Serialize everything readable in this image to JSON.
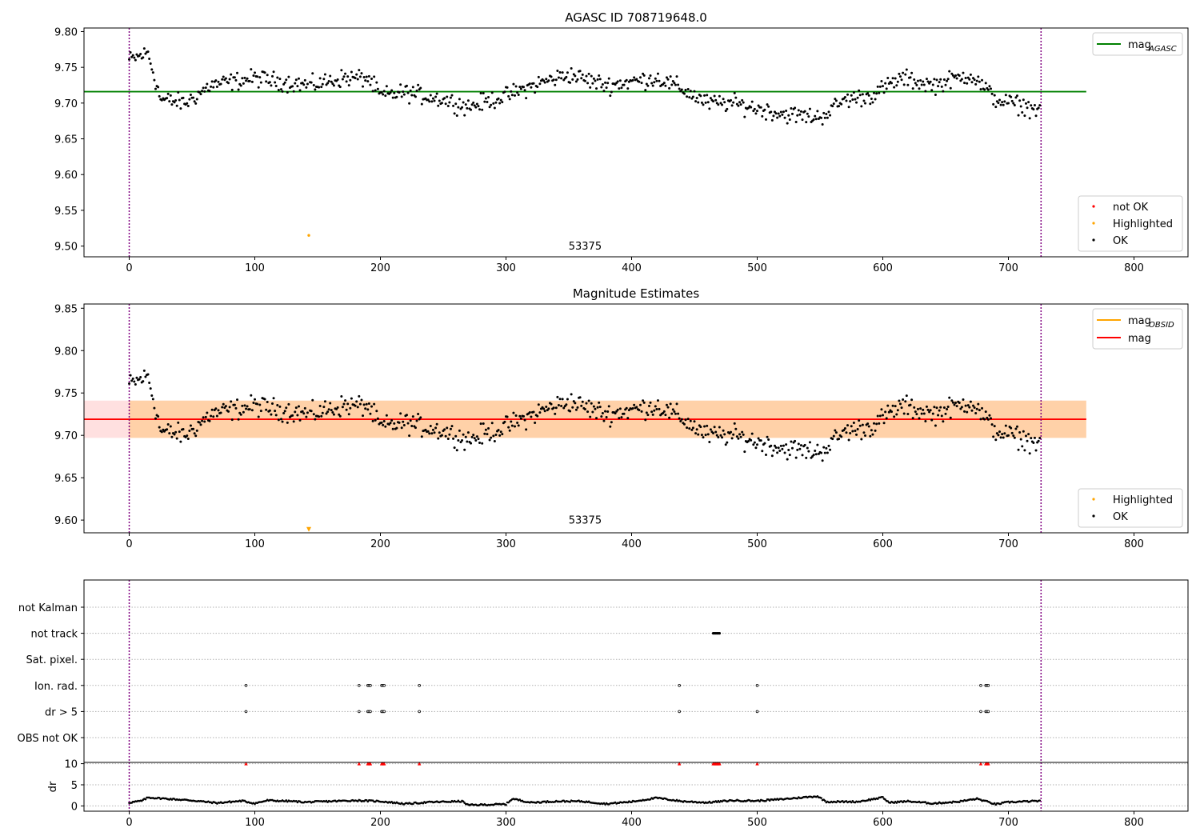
{
  "chart_data": [
    {
      "type": "scatter",
      "title": "AGASC ID 708719648.0",
      "xlim": [
        -36,
        843
      ],
      "ylim": [
        9.485,
        9.805
      ],
      "xticks": [
        0,
        100,
        200,
        300,
        400,
        500,
        600,
        700,
        800
      ],
      "yticks": [
        9.5,
        9.55,
        9.6,
        9.65,
        9.7,
        9.75,
        9.8
      ],
      "vlines": [
        0,
        726
      ],
      "annotation": {
        "text": "53375",
        "x": 363,
        "y": 9.495
      },
      "hline": {
        "name": "mag_AGASC",
        "y": 9.716,
        "x_range": [
          -36,
          762
        ],
        "color": "#008000"
      },
      "highlighted_point": {
        "x": 143,
        "y": 9.515
      },
      "ok_series": {
        "name": "OK",
        "count": 726,
        "mean": 9.716,
        "trend": [
          [
            0,
            9.76
          ],
          [
            15,
            9.77
          ],
          [
            25,
            9.705
          ],
          [
            45,
            9.7
          ],
          [
            65,
            9.725
          ],
          [
            100,
            9.735
          ],
          [
            120,
            9.73
          ],
          [
            145,
            9.725
          ],
          [
            170,
            9.735
          ],
          [
            190,
            9.735
          ],
          [
            200,
            9.71
          ],
          [
            220,
            9.715
          ],
          [
            250,
            9.705
          ],
          [
            270,
            9.695
          ],
          [
            300,
            9.71
          ],
          [
            330,
            9.73
          ],
          [
            350,
            9.74
          ],
          [
            380,
            9.725
          ],
          [
            400,
            9.73
          ],
          [
            420,
            9.735
          ],
          [
            440,
            9.72
          ],
          [
            460,
            9.7
          ],
          [
            480,
            9.7
          ],
          [
            520,
            9.685
          ],
          [
            550,
            9.68
          ],
          [
            570,
            9.705
          ],
          [
            590,
            9.71
          ],
          [
            615,
            9.735
          ],
          [
            640,
            9.725
          ],
          [
            670,
            9.74
          ],
          [
            690,
            9.705
          ],
          [
            726,
            9.69
          ]
        ]
      },
      "legend_top": [
        {
          "label": "mag",
          "sub": "AGASC",
          "kind": "line",
          "color": "#008000"
        }
      ],
      "legend_bottom": [
        {
          "label": "not OK",
          "kind": "point",
          "color": "#ff0000"
        },
        {
          "label": "Highlighted",
          "kind": "point",
          "color": "#ffa500"
        },
        {
          "label": "OK",
          "kind": "point",
          "color": "#000000"
        }
      ]
    },
    {
      "type": "scatter",
      "title": "Magnitude Estimates",
      "xlim": [
        -36,
        843
      ],
      "ylim": [
        9.585,
        9.855
      ],
      "xticks": [
        0,
        100,
        200,
        300,
        400,
        500,
        600,
        700,
        800
      ],
      "yticks": [
        9.6,
        9.65,
        9.7,
        9.75,
        9.8,
        9.85
      ],
      "vlines": [
        0,
        726
      ],
      "annotation": {
        "text": "53375",
        "x": 363,
        "y": 9.596
      },
      "band_obsid": {
        "y_range": [
          9.697,
          9.741
        ],
        "x_range": [
          0,
          762
        ],
        "color": "#ffa500"
      },
      "band_mag": {
        "y_range": [
          9.697,
          9.741
        ],
        "x_range": [
          -36,
          762
        ],
        "color": "#ff0000"
      },
      "hline": {
        "name": "mag",
        "y": 9.719,
        "x_range": [
          -36,
          762
        ],
        "color": "#ff0000"
      },
      "highlighted_point": {
        "x": 143,
        "y": 9.589
      },
      "legend_top": [
        {
          "label": "mag",
          "sub": "OBSID",
          "kind": "line",
          "color": "#ffa500"
        },
        {
          "label": "mag",
          "sub": "",
          "kind": "line",
          "color": "#ff0000"
        }
      ],
      "legend_bottom": [
        {
          "label": "Highlighted",
          "kind": "point",
          "color": "#ffa500"
        },
        {
          "label": "OK",
          "kind": "point",
          "color": "#000000"
        }
      ]
    },
    {
      "type": "scatter",
      "title": "",
      "xlim": [
        -36,
        843
      ],
      "xticks": [
        0,
        100,
        200,
        300,
        400,
        500,
        600,
        700,
        800
      ],
      "vlines": [
        0,
        726
      ],
      "flag_rows": [
        {
          "label": "not Kalman",
          "x": []
        },
        {
          "label": "not track",
          "x": [
            465,
            466,
            467,
            468,
            469,
            470
          ]
        },
        {
          "label": "Sat. pixel.",
          "x": []
        },
        {
          "label": "Ion. rad.",
          "x": [
            93,
            183,
            190,
            191,
            192,
            201,
            202,
            203,
            231,
            438,
            500,
            678,
            682,
            683,
            684
          ]
        },
        {
          "label": "dr > 5",
          "x": [
            93,
            183,
            190,
            191,
            192,
            201,
            202,
            203,
            231,
            438,
            500,
            678,
            682,
            683,
            684
          ]
        },
        {
          "label": "OBS not OK",
          "x": []
        }
      ],
      "dr": {
        "ylabel": "dr",
        "yticks": [
          0,
          5,
          10
        ],
        "ylim": [
          -0.3,
          10.3
        ],
        "clipped_value": 10,
        "clipped_x": [
          93,
          183,
          190,
          191,
          192,
          201,
          202,
          203,
          231,
          438,
          465,
          466,
          467,
          468,
          469,
          470,
          500,
          678,
          682,
          683,
          684
        ],
        "trend": [
          [
            0,
            0.8
          ],
          [
            10,
            1.2
          ],
          [
            15,
            2.0
          ],
          [
            30,
            1.7
          ],
          [
            50,
            1.3
          ],
          [
            70,
            0.7
          ],
          [
            90,
            1.2
          ],
          [
            100,
            0.6
          ],
          [
            110,
            1.3
          ],
          [
            130,
            1.1
          ],
          [
            140,
            0.9
          ],
          [
            150,
            1.0
          ],
          [
            180,
            1.3
          ],
          [
            200,
            1.1
          ],
          [
            220,
            0.5
          ],
          [
            240,
            0.9
          ],
          [
            265,
            1.1
          ],
          [
            270,
            0.2
          ],
          [
            300,
            0.4
          ],
          [
            305,
            1.7
          ],
          [
            320,
            0.8
          ],
          [
            340,
            1.1
          ],
          [
            360,
            1.1
          ],
          [
            380,
            0.5
          ],
          [
            400,
            1.0
          ],
          [
            420,
            1.9
          ],
          [
            440,
            1.1
          ],
          [
            460,
            0.8
          ],
          [
            480,
            1.3
          ],
          [
            500,
            1.2
          ],
          [
            520,
            1.6
          ],
          [
            548,
            2.3
          ],
          [
            555,
            1.0
          ],
          [
            580,
            1.0
          ],
          [
            600,
            2.0
          ],
          [
            605,
            0.8
          ],
          [
            620,
            1.1
          ],
          [
            640,
            0.6
          ],
          [
            660,
            1.0
          ],
          [
            675,
            1.7
          ],
          [
            690,
            0.4
          ],
          [
            700,
            0.9
          ],
          [
            726,
            1.2
          ]
        ]
      }
    }
  ]
}
